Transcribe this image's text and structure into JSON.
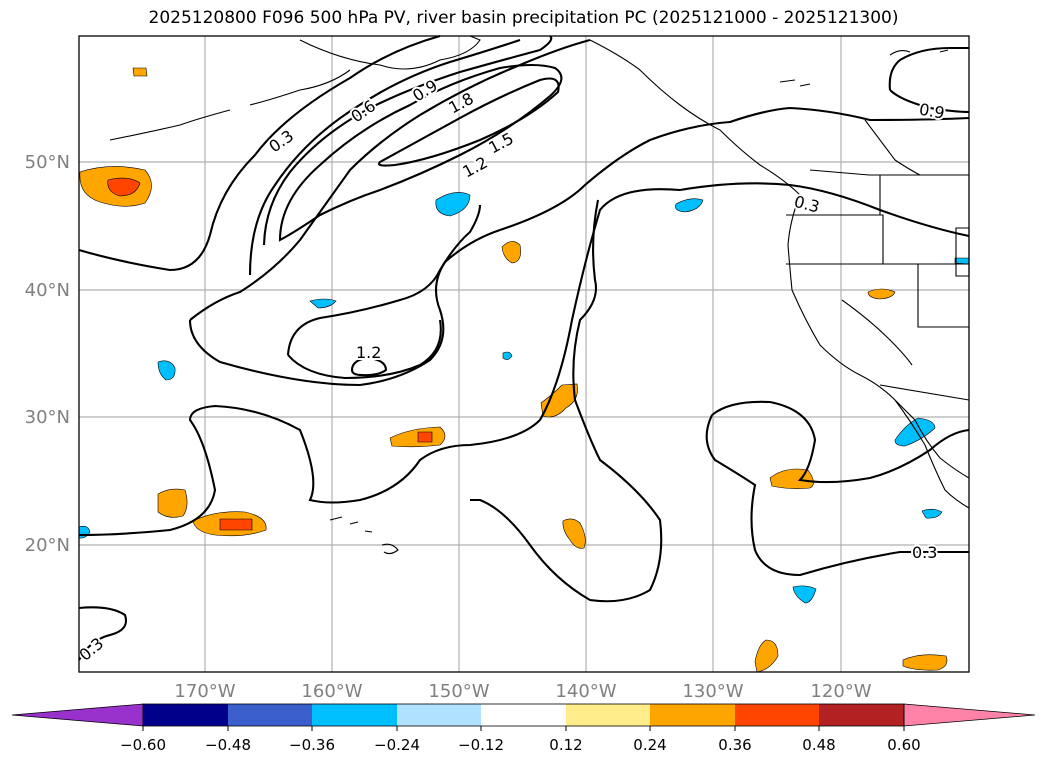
{
  "title": "2025120800 F096 500 hPa PV, river basin precipitation PC (2025121000 - 2025121300)",
  "map": {
    "lat_ticks": [
      "50°N",
      "40°N",
      "30°N",
      "20°N"
    ],
    "lon_ticks": [
      "170°W",
      "160°W",
      "150°W",
      "140°W",
      "130°W",
      "120°W"
    ],
    "contour_labels": [
      "0.3",
      "0.6",
      "0.9",
      "1.8",
      "1.5",
      "1.2",
      "1.2",
      "0.9",
      "0.3",
      "0.3",
      "0.3"
    ],
    "tick_color": "#808080"
  },
  "colorbar": {
    "ticks": [
      "−0.60",
      "−0.48",
      "−0.36",
      "−0.24",
      "−0.12",
      "0.12",
      "0.24",
      "0.36",
      "0.48",
      "0.60"
    ],
    "colors": [
      "#9932cc",
      "#00008b",
      "#3a5fcd",
      "#00bfff",
      "#b0e2ff",
      "#ffffff",
      "#ffec8b",
      "#ffa500",
      "#ff4500",
      "#b22222",
      "#ff83a8"
    ]
  },
  "fills": {
    "pos1": "#ffa500",
    "pos2": "#ff4500",
    "neg1": "#00bfff"
  }
}
